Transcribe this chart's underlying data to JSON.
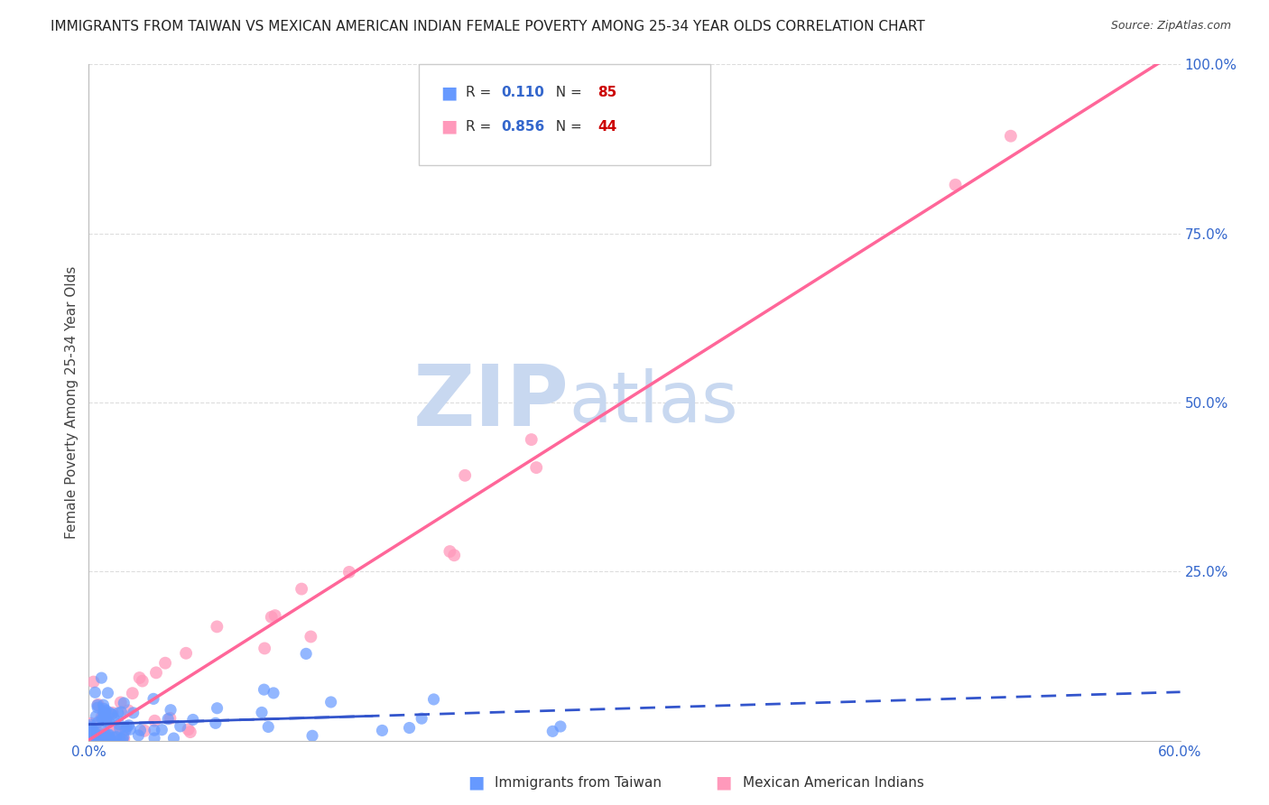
{
  "title": "IMMIGRANTS FROM TAIWAN VS MEXICAN AMERICAN INDIAN FEMALE POVERTY AMONG 25-34 YEAR OLDS CORRELATION CHART",
  "source": "Source: ZipAtlas.com",
  "ylabel": "Female Poverty Among 25-34 Year Olds",
  "xlim": [
    0.0,
    0.6
  ],
  "ylim": [
    0.0,
    1.0
  ],
  "ytick_positions": [
    0.0,
    0.25,
    0.5,
    0.75,
    1.0
  ],
  "ytick_labels": [
    "",
    "25.0%",
    "50.0%",
    "75.0%",
    "100.0%"
  ],
  "xtick_positions": [
    0.0,
    0.6
  ],
  "xtick_labels": [
    "0.0%",
    "60.0%"
  ],
  "series1_label": "Immigrants from Taiwan",
  "series1_color": "#6699ff",
  "series1_line_color": "#3355cc",
  "series1_R": "0.110",
  "series1_N": "85",
  "series2_label": "Mexican American Indians",
  "series2_color": "#ff99bb",
  "series2_line_color": "#ff6699",
  "series2_R": "0.856",
  "series2_N": "44",
  "legend_R_color": "#3366cc",
  "legend_N_color": "#cc0000",
  "watermark_zip": "ZIP",
  "watermark_atlas": "atlas",
  "watermark_color_zip": "#c8d8f0",
  "watermark_color_atlas": "#c8d8f0",
  "background_color": "#ffffff",
  "grid_color": "#dddddd",
  "title_fontsize": 11,
  "tick_label_color": "#3366cc",
  "seed": 7
}
